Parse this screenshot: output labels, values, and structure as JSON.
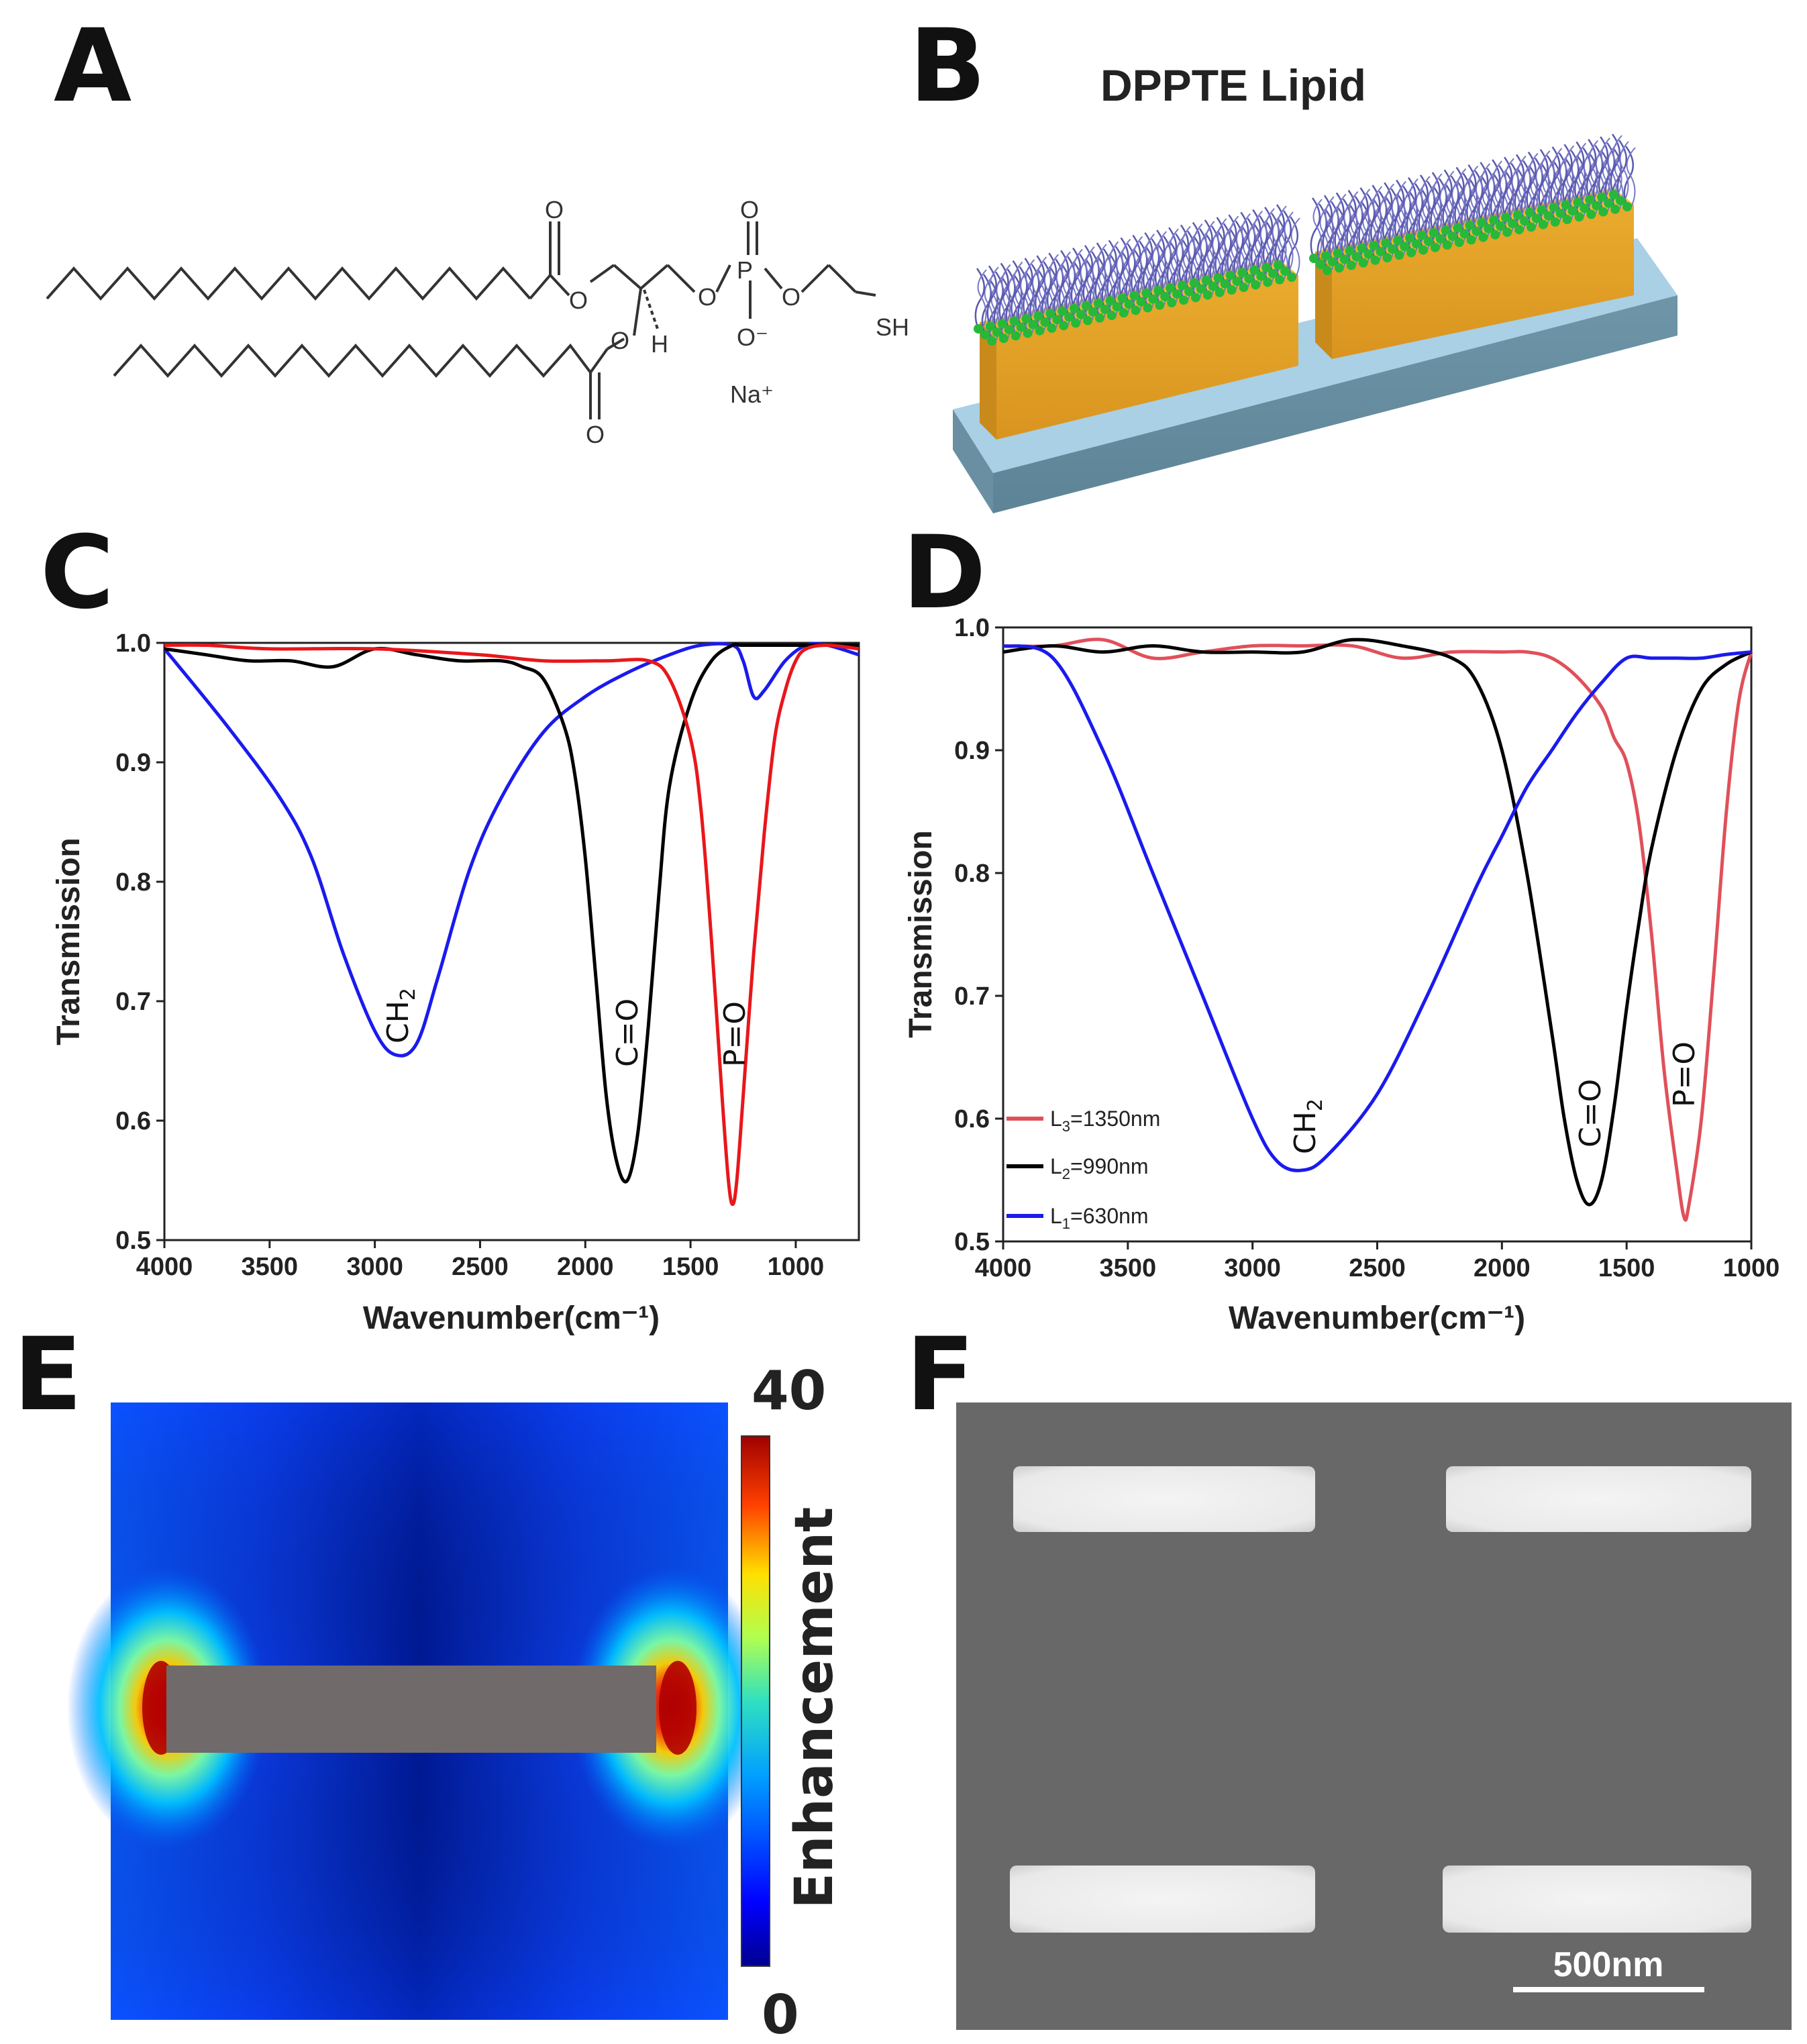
{
  "panels": {
    "A": "A",
    "B": "B",
    "C": "C",
    "D": "D",
    "E": "E",
    "F": "F"
  },
  "panel_a": {
    "o1": "O",
    "o2": "O",
    "o3": "O",
    "o4": "O",
    "o5": "O",
    "o6": "O",
    "o7": "O",
    "o8": "O",
    "p": "P",
    "h": "H",
    "sh": "SH",
    "o_minus": "O⁻",
    "na": "Na⁺"
  },
  "panel_b": {
    "title": "DPPTE Lipid"
  },
  "colors": {
    "red": "#e8171b",
    "black": "#000000",
    "blue": "#1a1aee",
    "legend_red": "#e0505a"
  },
  "chart_data": [
    {
      "type": "line",
      "xlabel": "Wavenumber(cm⁻¹)",
      "ylabel": "Transmission",
      "xlim": [
        4000,
        700
      ],
      "ylim": [
        0.5,
        1.0
      ],
      "xticks": [
        4000,
        3500,
        3000,
        2500,
        2000,
        1500,
        1000
      ],
      "xtick_labels": [
        "4000",
        "3500",
        "3000",
        "2500",
        "2000",
        "1500",
        "1000"
      ],
      "yticks": [
        0.5,
        0.6,
        0.7,
        0.8,
        0.9,
        1.0
      ],
      "ytick_labels": [
        "0.5",
        "0.6",
        "0.7",
        "0.8",
        "0.9",
        "1.0"
      ],
      "annotations": [
        "CH2",
        "C=O",
        "P=O"
      ],
      "series": [
        {
          "color": "blue",
          "x": [
            4000,
            3700,
            3450,
            3300,
            3150,
            3000,
            2900,
            2800,
            2700,
            2550,
            2400,
            2200,
            2000,
            1800,
            1600,
            1450,
            1300,
            1250,
            1200,
            1150,
            1050,
            950,
            850,
            700
          ],
          "y": [
            0.995,
            0.93,
            0.87,
            0.82,
            0.74,
            0.675,
            0.655,
            0.665,
            0.72,
            0.81,
            0.87,
            0.925,
            0.955,
            0.975,
            0.99,
            0.998,
            0.998,
            0.985,
            0.955,
            0.96,
            0.985,
            0.998,
            0.998,
            0.99
          ]
        },
        {
          "color": "black",
          "x": [
            4000,
            3800,
            3600,
            3400,
            3200,
            3000,
            2800,
            2600,
            2400,
            2300,
            2200,
            2100,
            2050,
            2000,
            1950,
            1900,
            1850,
            1800,
            1750,
            1700,
            1650,
            1600,
            1500,
            1400,
            1300,
            1250,
            1000,
            700
          ],
          "y": [
            0.995,
            0.99,
            0.985,
            0.985,
            0.98,
            0.995,
            0.99,
            0.985,
            0.985,
            0.98,
            0.97,
            0.93,
            0.89,
            0.82,
            0.72,
            0.62,
            0.565,
            0.55,
            0.59,
            0.68,
            0.79,
            0.88,
            0.95,
            0.985,
            0.998,
            0.998,
            0.998,
            0.998
          ]
        },
        {
          "color": "red",
          "x": [
            4000,
            3800,
            3500,
            3000,
            2500,
            2200,
            1900,
            1700,
            1600,
            1500,
            1450,
            1400,
            1350,
            1320,
            1300,
            1280,
            1250,
            1200,
            1150,
            1100,
            1050,
            1000,
            950,
            850,
            700
          ],
          "y": [
            0.998,
            0.998,
            0.995,
            0.995,
            0.99,
            0.985,
            0.985,
            0.985,
            0.97,
            0.92,
            0.86,
            0.75,
            0.62,
            0.55,
            0.53,
            0.55,
            0.62,
            0.74,
            0.84,
            0.92,
            0.96,
            0.985,
            0.995,
            0.998,
            0.995
          ]
        }
      ]
    },
    {
      "type": "line",
      "xlabel": "Wavenumber(cm⁻¹)",
      "ylabel": "Transmission",
      "xlim": [
        4000,
        1000
      ],
      "ylim": [
        0.5,
        1.0
      ],
      "xticks": [
        4000,
        3500,
        3000,
        2500,
        2000,
        1500,
        1000
      ],
      "xtick_labels": [
        "4000",
        "3500",
        "3000",
        "2500",
        "2000",
        "1500",
        "1000"
      ],
      "yticks": [
        0.5,
        0.6,
        0.7,
        0.8,
        0.9,
        1.0
      ],
      "ytick_labels": [
        "0.5",
        "0.6",
        "0.7",
        "0.8",
        "0.9",
        "1.0"
      ],
      "annotations": [
        "CH2",
        "C=O",
        "P=O"
      ],
      "legend": [
        "L3=1350nm",
        "L2=990nm",
        "L1=630nm"
      ],
      "series": [
        {
          "name": "L3=1350nm",
          "color": "legend_red",
          "x": [
            4000,
            3800,
            3600,
            3400,
            3200,
            3000,
            2800,
            2600,
            2400,
            2200,
            2000,
            1900,
            1800,
            1700,
            1600,
            1550,
            1500,
            1450,
            1400,
            1350,
            1300,
            1270,
            1250,
            1200,
            1150,
            1100,
            1050,
            1000
          ],
          "y": [
            0.985,
            0.985,
            0.99,
            0.975,
            0.98,
            0.985,
            0.985,
            0.985,
            0.975,
            0.98,
            0.98,
            0.98,
            0.975,
            0.96,
            0.935,
            0.91,
            0.89,
            0.84,
            0.75,
            0.64,
            0.56,
            0.52,
            0.53,
            0.6,
            0.72,
            0.85,
            0.94,
            0.98
          ]
        },
        {
          "name": "L2=990nm",
          "color": "black",
          "x": [
            4000,
            3800,
            3600,
            3400,
            3200,
            3000,
            2800,
            2600,
            2400,
            2200,
            2100,
            2000,
            1900,
            1800,
            1750,
            1700,
            1650,
            1600,
            1550,
            1500,
            1450,
            1400,
            1300,
            1200,
            1100,
            1000
          ],
          "y": [
            0.98,
            0.985,
            0.98,
            0.985,
            0.98,
            0.98,
            0.98,
            0.99,
            0.985,
            0.975,
            0.955,
            0.9,
            0.8,
            0.67,
            0.6,
            0.55,
            0.53,
            0.55,
            0.61,
            0.69,
            0.76,
            0.82,
            0.9,
            0.95,
            0.97,
            0.98
          ]
        },
        {
          "name": "L1=630nm",
          "color": "blue",
          "x": [
            4000,
            3800,
            3600,
            3400,
            3200,
            3000,
            2900,
            2800,
            2700,
            2500,
            2300,
            2100,
            2000,
            1900,
            1800,
            1700,
            1600,
            1500,
            1400,
            1300,
            1200,
            1100,
            1000
          ],
          "y": [
            0.985,
            0.975,
            0.9,
            0.8,
            0.7,
            0.6,
            0.565,
            0.558,
            0.57,
            0.62,
            0.7,
            0.79,
            0.83,
            0.87,
            0.9,
            0.93,
            0.955,
            0.975,
            0.975,
            0.975,
            0.975,
            0.978,
            0.98
          ]
        }
      ]
    }
  ],
  "panel_e": {
    "colorbar_max": "40",
    "colorbar_min": "0",
    "colorbar_label": "Enhancement"
  },
  "panel_f": {
    "scale_bar": "500nm"
  }
}
